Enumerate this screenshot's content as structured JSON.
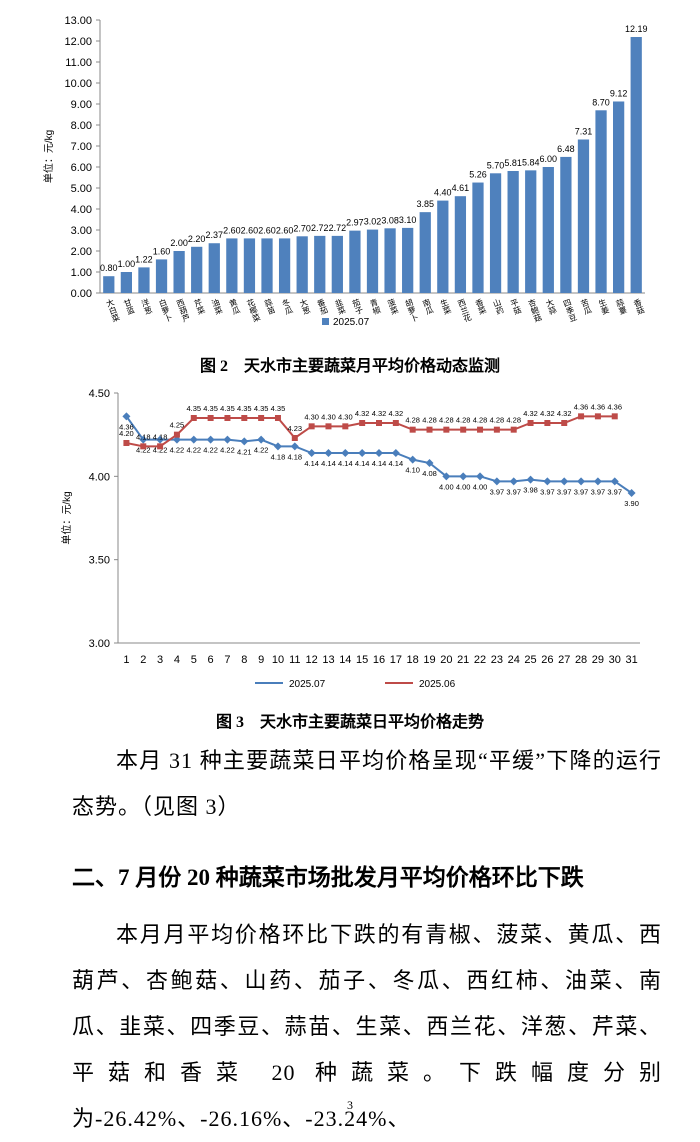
{
  "chart_data": [
    {
      "type": "bar",
      "ylabel": "单位：元/kg",
      "categories": [
        "大白菜",
        "甘蓝",
        "洋葱",
        "白萝卜",
        "西葫芦",
        "芹菜",
        "油菜",
        "黄瓜",
        "花椰菜",
        "蒜苗",
        "冬瓜",
        "大葱",
        "番茄",
        "韭菜",
        "茄子",
        "青椒",
        "菠菜",
        "胡萝卜",
        "南瓜",
        "生菜",
        "西兰花",
        "香菜",
        "山药",
        "平菇",
        "杏鲍菇",
        "大蒜",
        "四季豆",
        "苦瓜",
        "生姜",
        "蒜薹",
        "香菇"
      ],
      "series": [
        {
          "name": "2025.07",
          "color": "#4f81bd",
          "values": [
            0.8,
            1.0,
            1.22,
            1.6,
            2.0,
            2.2,
            2.37,
            2.6,
            2.6,
            2.6,
            2.6,
            2.7,
            2.72,
            2.72,
            2.97,
            3.02,
            3.08,
            3.1,
            3.85,
            4.4,
            4.61,
            5.26,
            5.7,
            5.81,
            5.84,
            6.0,
            6.48,
            7.31,
            8.7,
            9.12,
            12.19
          ],
          "value_labels": [
            "0.80",
            "1.00",
            "1.22",
            "1.60",
            "2.00",
            "2.20",
            "2.37",
            "2.60",
            "2.60",
            "2.60",
            "2.60",
            "2.70",
            "2.72",
            "2.72",
            "2.97",
            "3.02",
            "3.08",
            "3.10",
            "3.85",
            "4.40",
            "4.61",
            "5.26",
            "5.70",
            "5.81",
            "5.84",
            "6.00",
            "6.48",
            "7.31",
            "8.70",
            "9.12",
            "12.19"
          ]
        }
      ],
      "ylim": [
        0,
        13
      ],
      "yticks": [
        {
          "value": 0,
          "label": "0.00"
        },
        {
          "value": 1,
          "label": "1.00"
        },
        {
          "value": 2,
          "label": "2.00"
        },
        {
          "value": 3,
          "label": "3.00"
        },
        {
          "value": 4,
          "label": "4.00"
        },
        {
          "value": 5,
          "label": "5.00"
        },
        {
          "value": 6,
          "label": "6.00"
        },
        {
          "value": 7,
          "label": "7.00"
        },
        {
          "value": 8,
          "label": "8.00"
        },
        {
          "value": 9,
          "label": "9.00"
        },
        {
          "value": 10,
          "label": "10.00"
        },
        {
          "value": 11,
          "label": "11.00"
        },
        {
          "value": 12,
          "label": "12.00"
        },
        {
          "value": 13,
          "label": "13.00"
        }
      ],
      "grid": false,
      "caption": "图 2　天水市主要蔬菜月平均价格动态监测"
    },
    {
      "type": "line",
      "ylabel": "单位：元/kg",
      "categories": [
        1,
        2,
        3,
        4,
        5,
        6,
        7,
        8,
        9,
        10,
        11,
        12,
        13,
        14,
        15,
        16,
        17,
        18,
        19,
        20,
        21,
        22,
        23,
        24,
        25,
        26,
        27,
        28,
        29,
        30,
        31
      ],
      "series": [
        {
          "name": "2025.07",
          "color": "#4a7ebb",
          "marker": "diamond",
          "values": [
            4.36,
            4.22,
            4.22,
            4.22,
            4.22,
            4.22,
            4.22,
            4.21,
            4.22,
            4.18,
            4.18,
            4.14,
            4.14,
            4.14,
            4.14,
            4.14,
            4.14,
            4.1,
            4.08,
            4.0,
            4.0,
            4.0,
            3.97,
            3.97,
            3.98,
            3.97,
            3.97,
            3.97,
            3.97,
            3.97,
            3.9
          ],
          "value_labels": [
            "4.36",
            "4.22",
            "4.22",
            "4.22",
            "4.22",
            "4.22",
            "4.22",
            "4.21",
            "4.22",
            "4.18",
            "4.18",
            "4.14",
            "4.14",
            "4.14",
            "4.14",
            "4.14",
            "4.14",
            "4.10",
            "4.08",
            "4.00",
            "4.00",
            "4.00",
            "3.97",
            "3.97",
            "3.98",
            "3.97",
            "3.97",
            "3.97",
            "3.97",
            "3.97",
            "3.90"
          ]
        },
        {
          "name": "2025.06",
          "color": "#be4b48",
          "marker": "square",
          "values": [
            4.2,
            4.18,
            4.18,
            4.25,
            4.35,
            4.35,
            4.35,
            4.35,
            4.35,
            4.35,
            4.23,
            4.3,
            4.3,
            4.3,
            4.32,
            4.32,
            4.32,
            4.28,
            4.28,
            4.28,
            4.28,
            4.28,
            4.28,
            4.28,
            4.32,
            4.32,
            4.32,
            4.36,
            4.36,
            4.36,
            null
          ],
          "value_labels": [
            "4.20",
            "4.18",
            "4.18",
            "4.25",
            "4.35",
            "4.35",
            "4.35",
            "4.35",
            "4.35",
            "4.35",
            "4.23",
            "4.30",
            "4.30",
            "4.30",
            "4.32",
            "4.32",
            "4.32",
            "4.28",
            "4.28",
            "4.28",
            "4.28",
            "4.28",
            "4.28",
            "4.28",
            "4.32",
            "4.32",
            "4.32",
            "4.36",
            "4.36",
            "4.36",
            null
          ]
        }
      ],
      "ylim": [
        3,
        4.5
      ],
      "yticks": [
        {
          "value": 3,
          "label": "3.00"
        },
        {
          "value": 3.5,
          "label": "3.50"
        },
        {
          "value": 4,
          "label": "4.00"
        },
        {
          "value": 4.5,
          "label": "4.50"
        }
      ],
      "grid": false,
      "caption": "图 3　天水市主要蔬菜日平均价格走势"
    }
  ],
  "paragraphs": [
    "本月 31 种主要蔬菜日平均价格呈现“平缓”下降的运行态势。（见图 3）",
    "本月月平均价格环比下跌的有青椒、菠菜、黄瓜、西葫芦、杏鲍菇、山药、茄子、冬瓜、西红柿、油菜、南瓜、韭菜、四季豆、蒜苗、生菜、西兰花、洋葱、芹菜、平菇和香菜 20 种蔬菜。下跌幅度分别为-26.42%、-26.16%、-23.24%、"
  ],
  "heading": "二、7 月份 20 种蔬菜市场批发月平均价格环比下跌",
  "page_number": "3"
}
